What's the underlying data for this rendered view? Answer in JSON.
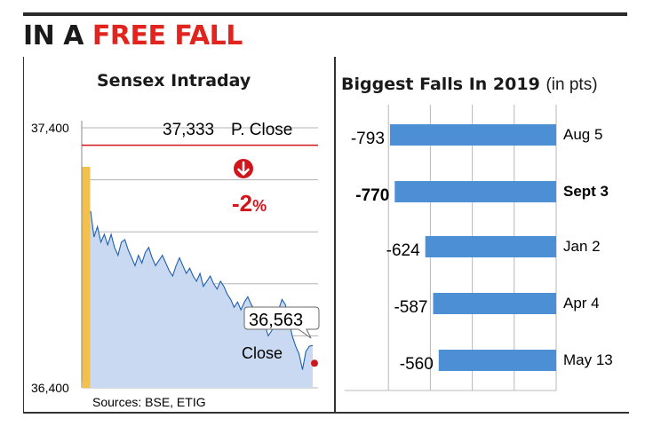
{
  "headline": {
    "part1": "IN A",
    "part2": "FREE FALL",
    "accent_color": "#e2241f"
  },
  "left_panel": {
    "title": "Sensex Intraday",
    "source": "Sources: BSE, ETIG",
    "prev_close_value": "37,333",
    "prev_close_label": "P. Close",
    "change_text": "-2",
    "change_unit": "%",
    "close_value": "36,563",
    "close_label": "Close",
    "fill_color": "#c9d9f1",
    "line_color": "#1f5fb0",
    "open_bar_color": "#f3c04b",
    "ref_line_color": "#d0161b",
    "arrow_icon": "down-arrow-circle-icon"
  },
  "right_panel": {
    "title_bold": "Biggest Falls In 2019",
    "title_rest": "(in pts)",
    "bar_color": "#4d8fd4"
  },
  "chart_data": [
    {
      "type": "area",
      "title": "Sensex Intraday",
      "ylim": [
        36400,
        37400
      ],
      "y_ticks": [
        "37,400",
        "36,400"
      ],
      "reference_line": {
        "label": "P. Close",
        "value": 37333
      },
      "change_percent": -2,
      "close": 36563,
      "open_spike_range": [
        37100,
        37250
      ],
      "series": [
        {
          "values": [
            37080,
            36980,
            37020,
            36960,
            36990,
            36950,
            36990,
            36940,
            36910,
            36960,
            36970,
            36930,
            36900,
            36870,
            36910,
            36880,
            36920,
            36940,
            36900,
            36870,
            36890,
            36910,
            36880,
            36850,
            36830,
            36870,
            36900,
            36870,
            36840,
            36860,
            36830,
            36810,
            36840,
            36790,
            36810,
            36830,
            36800,
            36780,
            36810,
            36790,
            36760,
            36740,
            36710,
            36730,
            36700,
            36730,
            36750,
            36720,
            36700,
            36680,
            36660,
            36640,
            36600,
            36620,
            36640,
            36700,
            36740,
            36720,
            36660,
            36600,
            36560,
            36530,
            36470,
            36540,
            36560,
            36563
          ]
        }
      ],
      "grid": true
    },
    {
      "type": "bar",
      "title": "Biggest Falls In 2019 (in pts)",
      "categories": [
        "Aug 5",
        "Sept 3",
        "Jan 2",
        "Apr 4",
        "May 13"
      ],
      "values": [
        -793,
        -770,
        -624,
        -587,
        -560
      ],
      "value_labels": [
        "-793",
        "-770",
        "-624",
        "-587",
        "-560"
      ],
      "highlight": "Sept 3",
      "xlim": [
        -800,
        0
      ],
      "grid": true
    }
  ]
}
